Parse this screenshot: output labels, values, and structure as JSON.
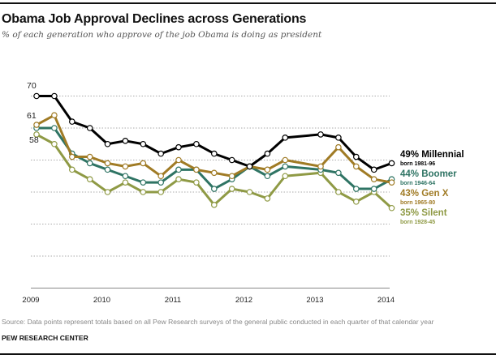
{
  "chart_data": {
    "type": "line",
    "title": "Obama Job Approval Declines across Generations",
    "subtitle": "% of each generation who approve of the job Obama is doing as president",
    "x": [
      "2009 Q1",
      "2009 Q2",
      "2009 Q3",
      "2009 Q4",
      "2010 Q1",
      "2010 Q2",
      "2010 Q3",
      "2010 Q4",
      "2011 Q1",
      "2011 Q2",
      "2011 Q3",
      "2011 Q4",
      "2012 Q1",
      "2012 Q2",
      "2012 Q3",
      "2013 Q1",
      "2013 Q2",
      "2013 Q3",
      "2013 Q4",
      "2014 Q1"
    ],
    "x_ticks": [
      "2009",
      "2010",
      "2011",
      "2012",
      "2013",
      "2014"
    ],
    "ylim": [
      10,
      72
    ],
    "grid": true,
    "start_labels": [
      "70",
      "61",
      "58"
    ],
    "series": [
      {
        "name": "Millennial",
        "end_label": "49% Millennial",
        "born": "born 1981-96",
        "color": "#000000",
        "values": [
          70,
          70,
          62,
          60,
          55,
          56,
          55,
          52,
          54,
          55,
          52,
          50,
          48,
          52,
          57,
          58,
          57,
          51,
          47,
          49
        ]
      },
      {
        "name": "Boomer",
        "end_label": "44% Boomer",
        "born": "born 1946-64",
        "color": "#2f7464",
        "values": [
          60,
          60,
          52,
          49,
          47,
          45,
          43,
          43,
          47,
          47,
          41,
          44,
          48,
          45,
          48,
          47,
          46,
          41,
          41,
          44
        ]
      },
      {
        "name": "Gen X",
        "end_label": "43% Gen X",
        "born": "born 1965-80",
        "color": "#a07b25",
        "values": [
          61,
          64,
          51,
          51,
          49,
          48,
          49,
          45,
          50,
          47,
          46,
          45,
          48,
          47,
          50,
          48,
          54,
          48,
          44,
          43
        ]
      },
      {
        "name": "Silent",
        "end_label": "35% Silent",
        "born": "born 1928-45",
        "color": "#8f9a45",
        "values": [
          58,
          55,
          47,
          44,
          40,
          43,
          40,
          40,
          44,
          43,
          36,
          41,
          40,
          38,
          45,
          46,
          40,
          37,
          40,
          35
        ]
      }
    ],
    "source": "Source: Data points represent totals based on all Pew Research surveys of the general public conducted in each quarter of that calendar year",
    "brand": "PEW RESEARCH CENTER"
  }
}
